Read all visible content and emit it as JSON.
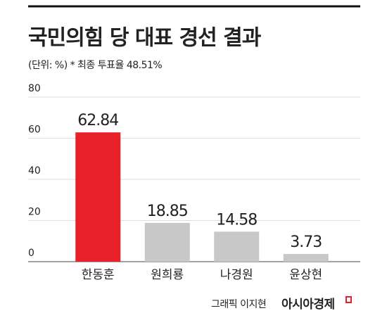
{
  "chart_data": {
    "type": "bar",
    "title": "국민의힘 당 대표 경선 결과",
    "subtitle": "(단위: %) * 최종 투표율 48.51%",
    "categories": [
      "한동훈",
      "원희룡",
      "나경원",
      "윤상현"
    ],
    "values": [
      62.84,
      18.85,
      14.58,
      3.73
    ],
    "colors": [
      "#e8202a",
      "#c8c8c8",
      "#c8c8c8",
      "#c8c8c8"
    ],
    "ylim": [
      0,
      80
    ],
    "yticks": [
      0,
      20,
      40,
      60,
      80
    ],
    "grid": true,
    "credit": "그래픽 이지현",
    "source": "아시아경제"
  }
}
